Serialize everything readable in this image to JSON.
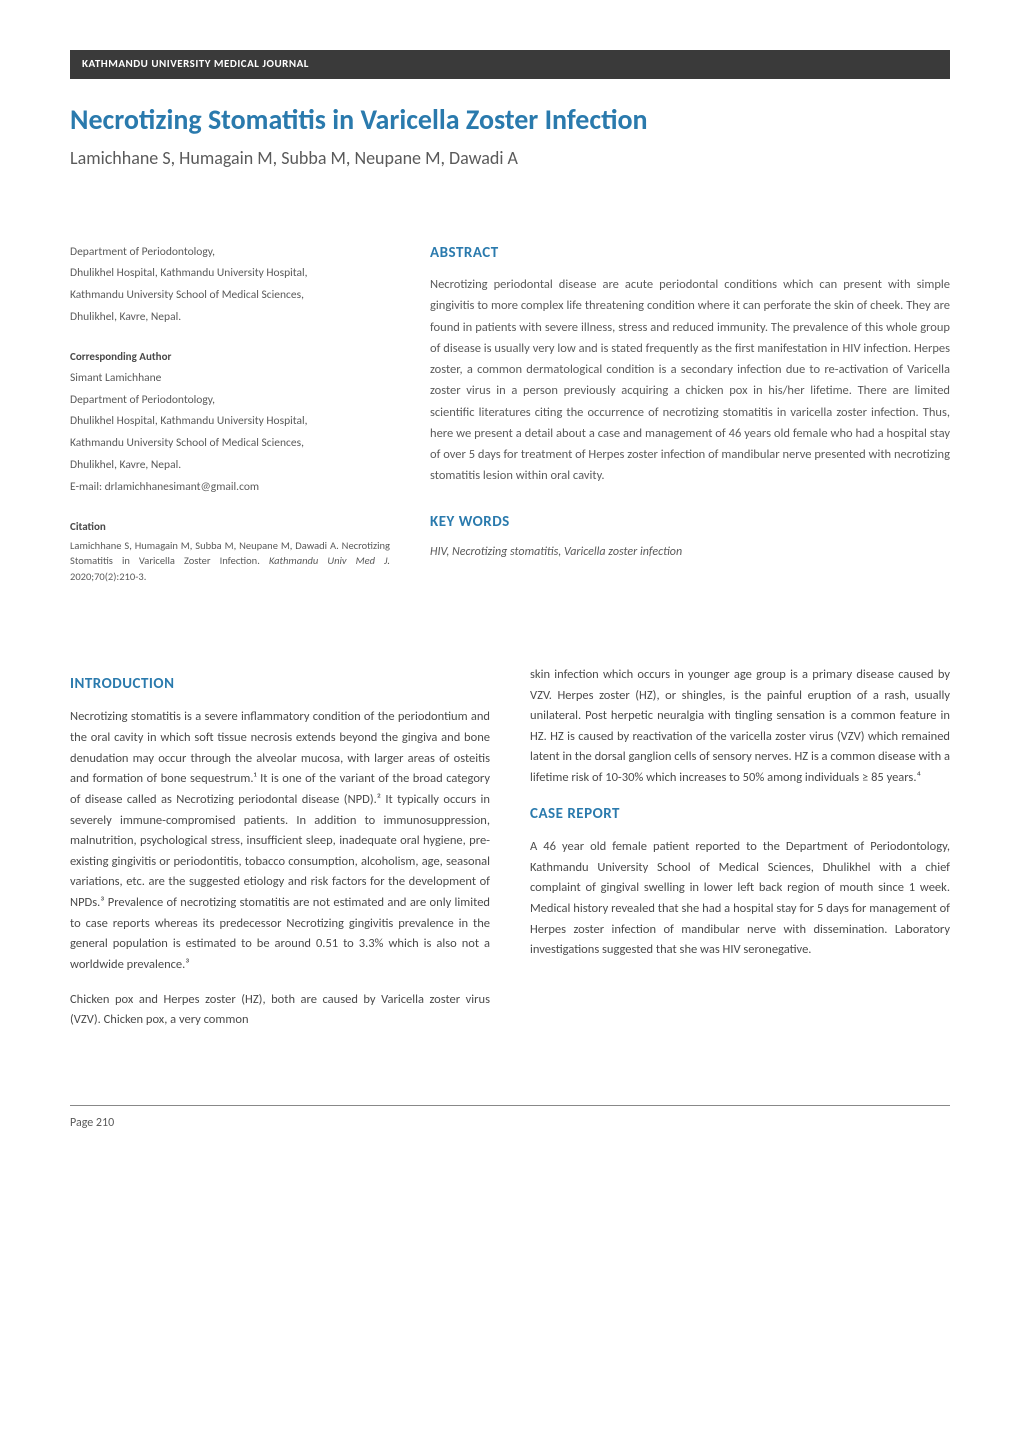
{
  "header": {
    "journal_name": "KATHMANDU UNIVERSITY MEDICAL JOURNAL"
  },
  "title": "Necrotizing Stomatitis in Varicella Zoster Infection",
  "authors": "Lamichhane S, Humagain M, Subba M, Neupane M, Dawadi A",
  "affiliation": {
    "line1": "Department of Periodontology,",
    "line2": "Dhulikhel Hospital, Kathmandu University Hospital,",
    "line3": "Kathmandu University School of Medical Sciences,",
    "line4": "Dhulikhel, Kavre, Nepal."
  },
  "corresponding": {
    "heading": "Corresponding Author",
    "name": "Simant Lamichhane",
    "line1": "Department of Periodontology,",
    "line2": "Dhulikhel Hospital, Kathmandu University Hospital,",
    "line3": "Kathmandu University School of Medical Sciences,",
    "line4": "Dhulikhel, Kavre, Nepal.",
    "email": "E-mail: drlamichhanesimant@gmail.com"
  },
  "citation": {
    "heading": "Citation",
    "text_prefix": "Lamichhane S, Humagain M, Subba M, Neupane M, Dawadi A. Necrotizing Stomatitis in Varicella Zoster Infection. ",
    "journal": "Kathmandu Univ Med J.",
    "text_suffix": " 2020;70(2):210-3."
  },
  "abstract": {
    "heading": "ABSTRACT",
    "text": "Necrotizing periodontal disease are acute periodontal conditions which can present with simple gingivitis to more complex life threatening condition where it can perforate the skin of cheek. They are found in patients with severe illness, stress and reduced immunity. The prevalence of this whole group of disease is usually very low and is stated frequently as the first manifestation in HIV infection. Herpes zoster, a common dermatological condition is a secondary infection due to re-activation of Varicella zoster virus in a person previously acquiring a chicken pox in his/her lifetime. There are limited scientific literatures citing the occurrence of necrotizing stomatitis in varicella zoster infection. Thus, here we present a detail about a case and management of 46 years old female who had a hospital stay of over 5 days for treatment of Herpes zoster infection of mandibular nerve presented with necrotizing stomatitis lesion within oral cavity."
  },
  "keywords": {
    "heading": "KEY WORDS",
    "text": "HIV, Necrotizing stomatitis, Varicella zoster infection"
  },
  "introduction": {
    "heading": "INTRODUCTION",
    "para1": "Necrotizing stomatitis is a severe inflammatory condition of the periodontium and the oral cavity in which soft tissue necrosis extends beyond the gingiva and bone denudation may occur through the alveolar mucosa, with larger areas of osteitis and formation of bone sequestrum.¹ It is one of the variant of the broad category of disease called as Necrotizing periodontal disease (NPD).² It typically occurs in severely immune-compromised patients. In addition to immunosuppression, malnutrition, psychological stress, insufficient sleep, inadequate oral hygiene, pre-existing gingivitis or periodontitis, tobacco consumption, alcoholism, age, seasonal variations, etc. are the suggested etiology and risk factors for the development of NPDs.³ Prevalence of necrotizing stomatitis are not estimated and are only limited to case reports whereas its predecessor Necrotizing gingivitis prevalence in the general population is estimated to be around 0.51 to 3.3% which is also not a worldwide prevalence.³",
    "para2": "Chicken pox and Herpes zoster (HZ), both are caused by Varicella zoster virus (VZV). Chicken pox, a very common",
    "para3": "skin infection which occurs in younger age group is a primary disease caused by VZV. Herpes zoster (HZ), or shingles, is the painful eruption of a rash, usually unilateral. Post herpetic neuralgia with tingling sensation is a common feature in HZ. HZ is caused by reactivation of the varicella zoster virus (VZV) which remained latent in the dorsal ganglion cells of sensory nerves. HZ is a common disease with a lifetime risk of 10-30% which increases to 50% among individuals ≥ 85 years.⁴"
  },
  "case_report": {
    "heading": "CASE REPORT",
    "para1": "A 46 year old female patient reported to the Department of Periodontology, Kathmandu University School of Medical Sciences, Dhulikhel with a chief complaint of gingival swelling in lower left back region of mouth since 1 week. Medical history revealed that she had a hospital stay for 5 days for management of Herpes zoster infection of mandibular nerve with dissemination. Laboratory investigations suggested that she was HIV seronegative."
  },
  "footer": {
    "page": "Page 210"
  },
  "style": {
    "accent_color": "#2a7aad",
    "header_bg": "#3a3a3a",
    "text_color": "#4a4a4a",
    "body_font_size": 12.5,
    "title_font_size": 28,
    "heading_font_size": 15
  }
}
